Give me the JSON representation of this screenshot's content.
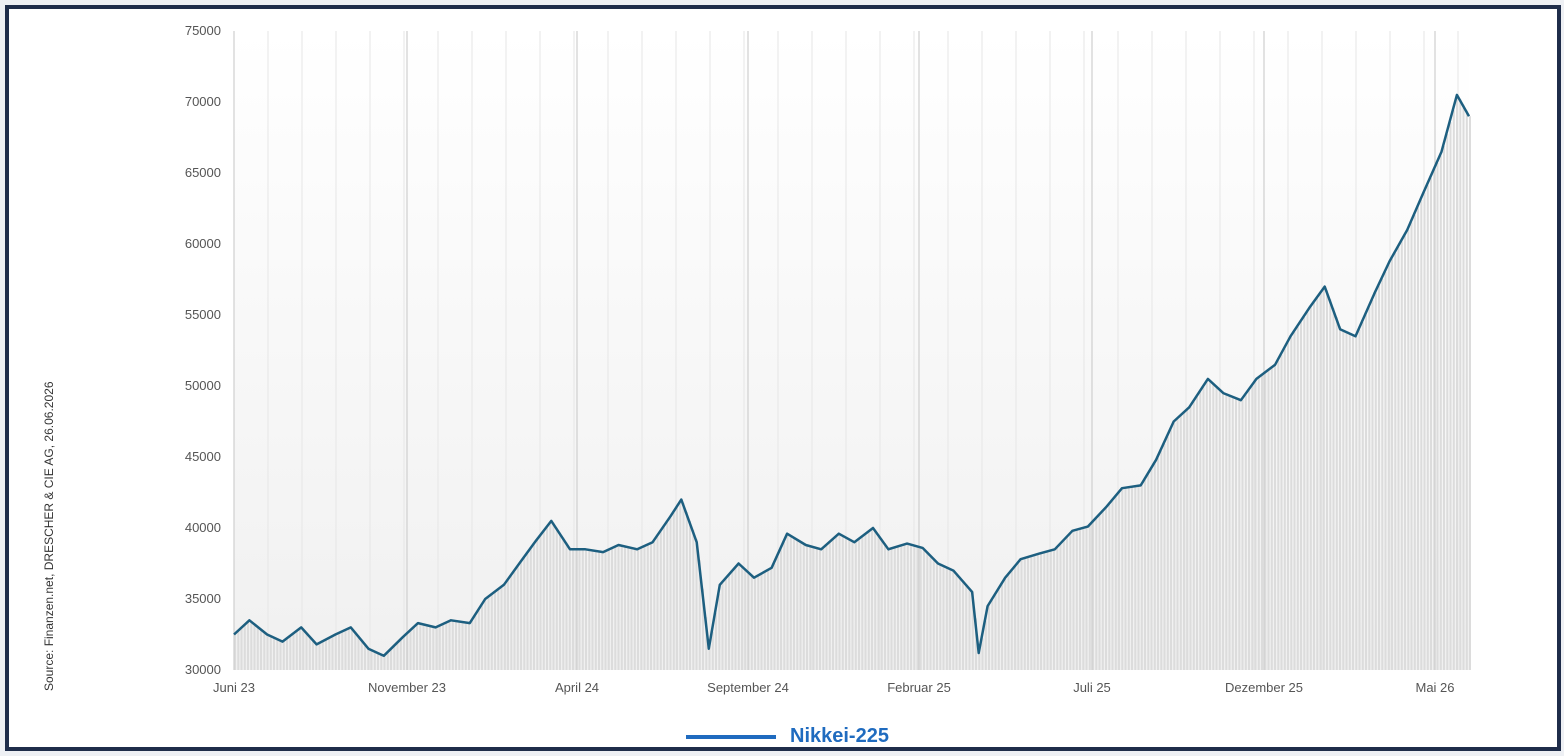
{
  "source_text": "Source: Finanzen.net, DRESCHER & CIE AG, 26.06.2026",
  "colors": {
    "line": "#1d5f80",
    "legend": "#1f6bbf",
    "bars": "#dcdcdc",
    "frame": "#1f2d4a"
  },
  "chart_data": {
    "type": "line",
    "title": "",
    "xlabel": "",
    "ylabel": "",
    "ylim": [
      30000,
      75000
    ],
    "y_ticks": [
      30000,
      35000,
      40000,
      45000,
      50000,
      55000,
      60000,
      65000,
      70000,
      75000
    ],
    "x_ticks": [
      "Juni 23",
      "November 23",
      "April 24",
      "September 24",
      "Februar 25",
      "Juli 25",
      "Dezember 25",
      "Mai 26"
    ],
    "grid": true,
    "legend_position": "bottom-center",
    "series": [
      {
        "name": "Nikkei-225",
        "x": [
          "2023-06-01",
          "2023-06-15",
          "2023-07-01",
          "2023-07-15",
          "2023-08-01",
          "2023-08-15",
          "2023-09-01",
          "2023-09-15",
          "2023-10-01",
          "2023-10-15",
          "2023-11-01",
          "2023-11-15",
          "2023-12-01",
          "2023-12-15",
          "2024-01-01",
          "2024-01-15",
          "2024-02-01",
          "2024-02-15",
          "2024-03-01",
          "2024-03-15",
          "2024-04-01",
          "2024-04-15",
          "2024-05-01",
          "2024-05-15",
          "2024-06-01",
          "2024-06-15",
          "2024-07-01",
          "2024-07-11",
          "2024-07-25",
          "2024-08-05",
          "2024-08-15",
          "2024-09-01",
          "2024-09-15",
          "2024-10-01",
          "2024-10-15",
          "2024-11-01",
          "2024-11-15",
          "2024-12-01",
          "2024-12-15",
          "2025-01-01",
          "2025-01-15",
          "2025-02-01",
          "2025-02-15",
          "2025-03-01",
          "2025-03-15",
          "2025-04-01",
          "2025-04-07",
          "2025-04-15",
          "2025-05-01",
          "2025-05-15",
          "2025-06-01",
          "2025-06-15",
          "2025-07-01",
          "2025-07-15",
          "2025-08-01",
          "2025-08-15",
          "2025-09-01",
          "2025-09-15",
          "2025-10-01",
          "2025-10-15",
          "2025-11-01",
          "2025-11-15",
          "2025-12-01",
          "2025-12-15",
          "2026-01-01",
          "2026-01-15",
          "2026-02-01",
          "2026-02-15",
          "2026-03-01",
          "2026-03-15",
          "2026-04-01",
          "2026-04-15",
          "2026-05-01",
          "2026-05-15",
          "2026-06-01",
          "2026-06-15",
          "2026-06-26"
        ],
        "y": [
          32500,
          33500,
          32500,
          32000,
          33000,
          31800,
          32500,
          33000,
          31500,
          31000,
          32300,
          33300,
          33000,
          33500,
          33300,
          35000,
          36000,
          37500,
          39100,
          40500,
          38500,
          38500,
          38300,
          38800,
          38500,
          39000,
          40800,
          42000,
          39000,
          31500,
          36000,
          37500,
          36500,
          37200,
          39600,
          38800,
          38500,
          39600,
          39000,
          40000,
          38500,
          38900,
          38600,
          37500,
          37000,
          35500,
          31200,
          34500,
          36500,
          37800,
          38200,
          38500,
          39800,
          40100,
          41500,
          42800,
          43000,
          44800,
          47500,
          48500,
          50500,
          49500,
          49000,
          50500,
          51500,
          53500,
          55500,
          57000,
          54000,
          53500,
          56500,
          58800,
          61000,
          63500,
          66500,
          70500,
          69000
        ]
      }
    ]
  }
}
